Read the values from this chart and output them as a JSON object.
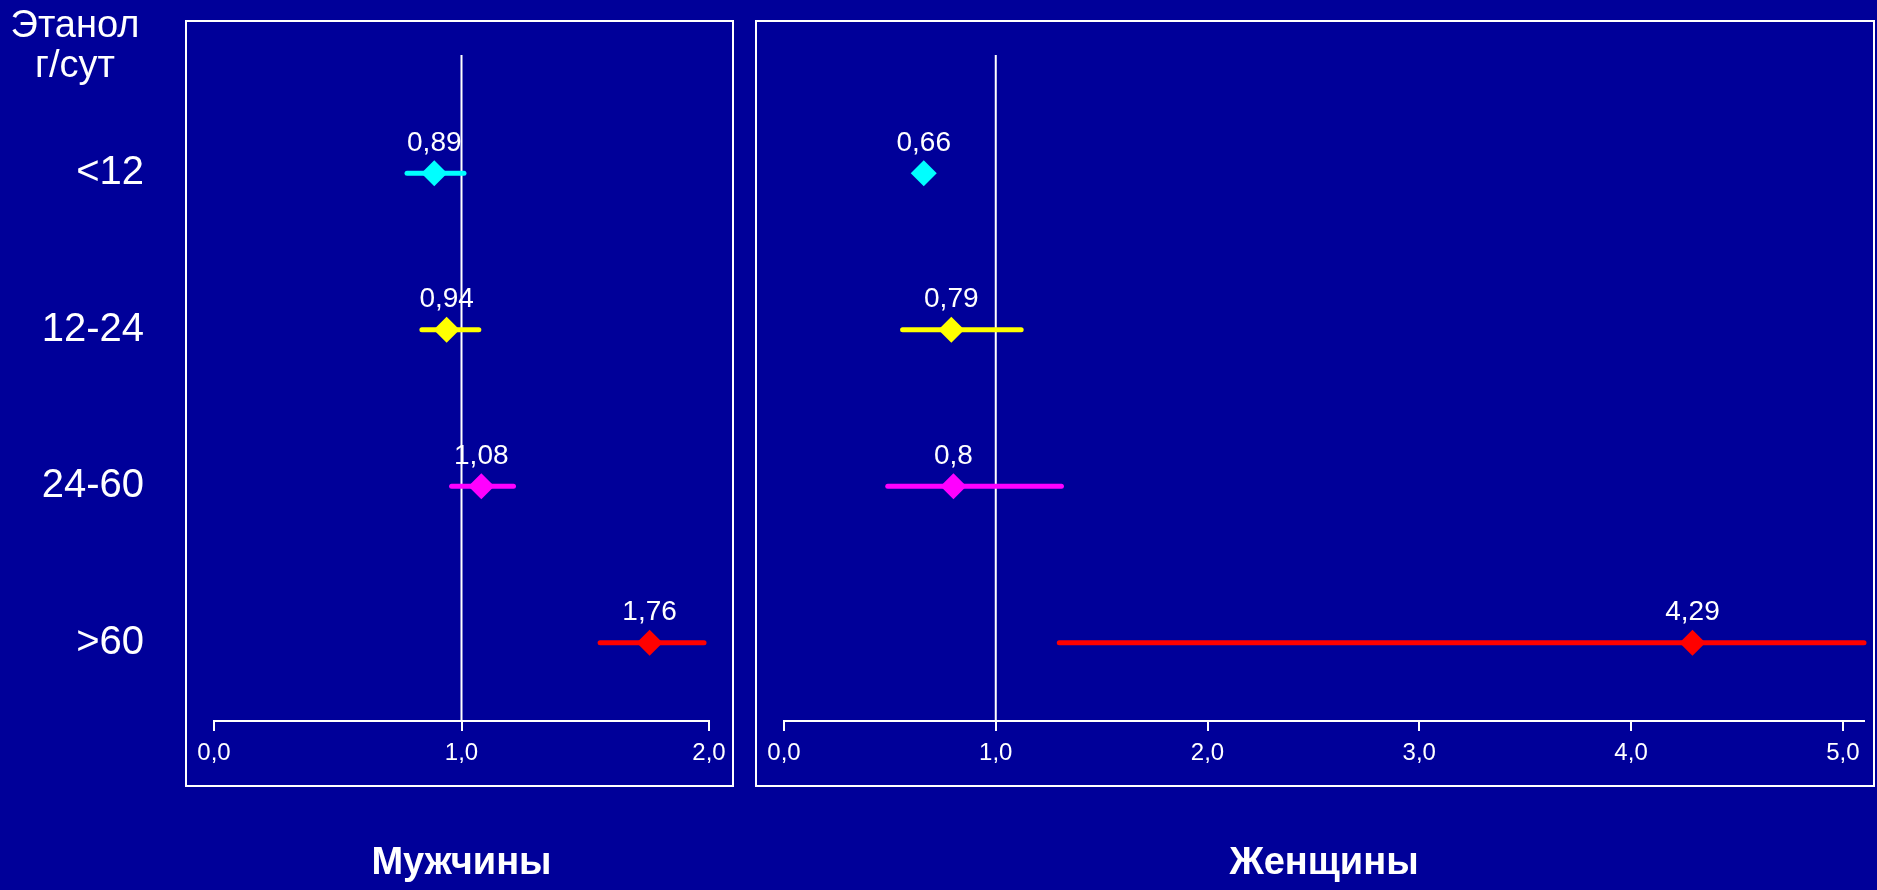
{
  "chart_data": [
    {
      "type": "scatter",
      "orientation": "horizontal",
      "ylabel": "Этанол г/сут",
      "xlabel": "Мужчины",
      "categories": [
        "<12",
        "12-24",
        "24-60",
        ">60"
      ],
      "values": [
        0.89,
        0.94,
        1.08,
        1.76
      ],
      "colors": [
        "#00ffff",
        "#ffff00",
        "#ff00ff",
        "#ff0000"
      ],
      "errors": [
        [
          0.78,
          1.01
        ],
        [
          0.84,
          1.07
        ],
        [
          0.96,
          1.21
        ],
        [
          1.56,
          1.98
        ]
      ],
      "value_labels": [
        "0,89",
        "0,94",
        "1,08",
        "1,76"
      ],
      "xlim": [
        0,
        2
      ],
      "xticks": [
        {
          "value": 0,
          "label": "0,0"
        },
        {
          "value": 1,
          "label": "1,0"
        },
        {
          "value": 2,
          "label": "2,0"
        }
      ],
      "ref_lines": [
        {
          "axis": "x",
          "value": 1,
          "color": "#ffffff"
        }
      ],
      "marker": "diamond",
      "grid": false,
      "legend": false
    },
    {
      "type": "scatter",
      "orientation": "horizontal",
      "xlabel": "Женщины",
      "categories": [
        null,
        null,
        null,
        null
      ],
      "values": [
        0.66,
        0.79,
        0.8,
        4.29
      ],
      "colors": [
        "#00ffff",
        "#ffff00",
        "#ff00ff",
        "#ff0000"
      ],
      "errors": [
        null,
        [
          0.56,
          1.12
        ],
        [
          0.49,
          1.31
        ],
        [
          1.3,
          5.1
        ]
      ],
      "value_labels": [
        "0,66",
        "0,79",
        "0,8",
        "4,29"
      ],
      "xlim": [
        0,
        5.1
      ],
      "xticks": [
        {
          "value": 0,
          "label": "0,0"
        },
        {
          "value": 1,
          "label": "1,0"
        },
        {
          "value": 2,
          "label": "2,0"
        },
        {
          "value": 3,
          "label": "3,0"
        },
        {
          "value": 4,
          "label": "4,0"
        },
        {
          "value": 5,
          "label": "5,0"
        }
      ],
      "ref_lines": [
        {
          "axis": "x",
          "value": 1,
          "color": "#ffffff"
        }
      ],
      "marker": "diamond",
      "grid": false,
      "legend": false
    }
  ]
}
